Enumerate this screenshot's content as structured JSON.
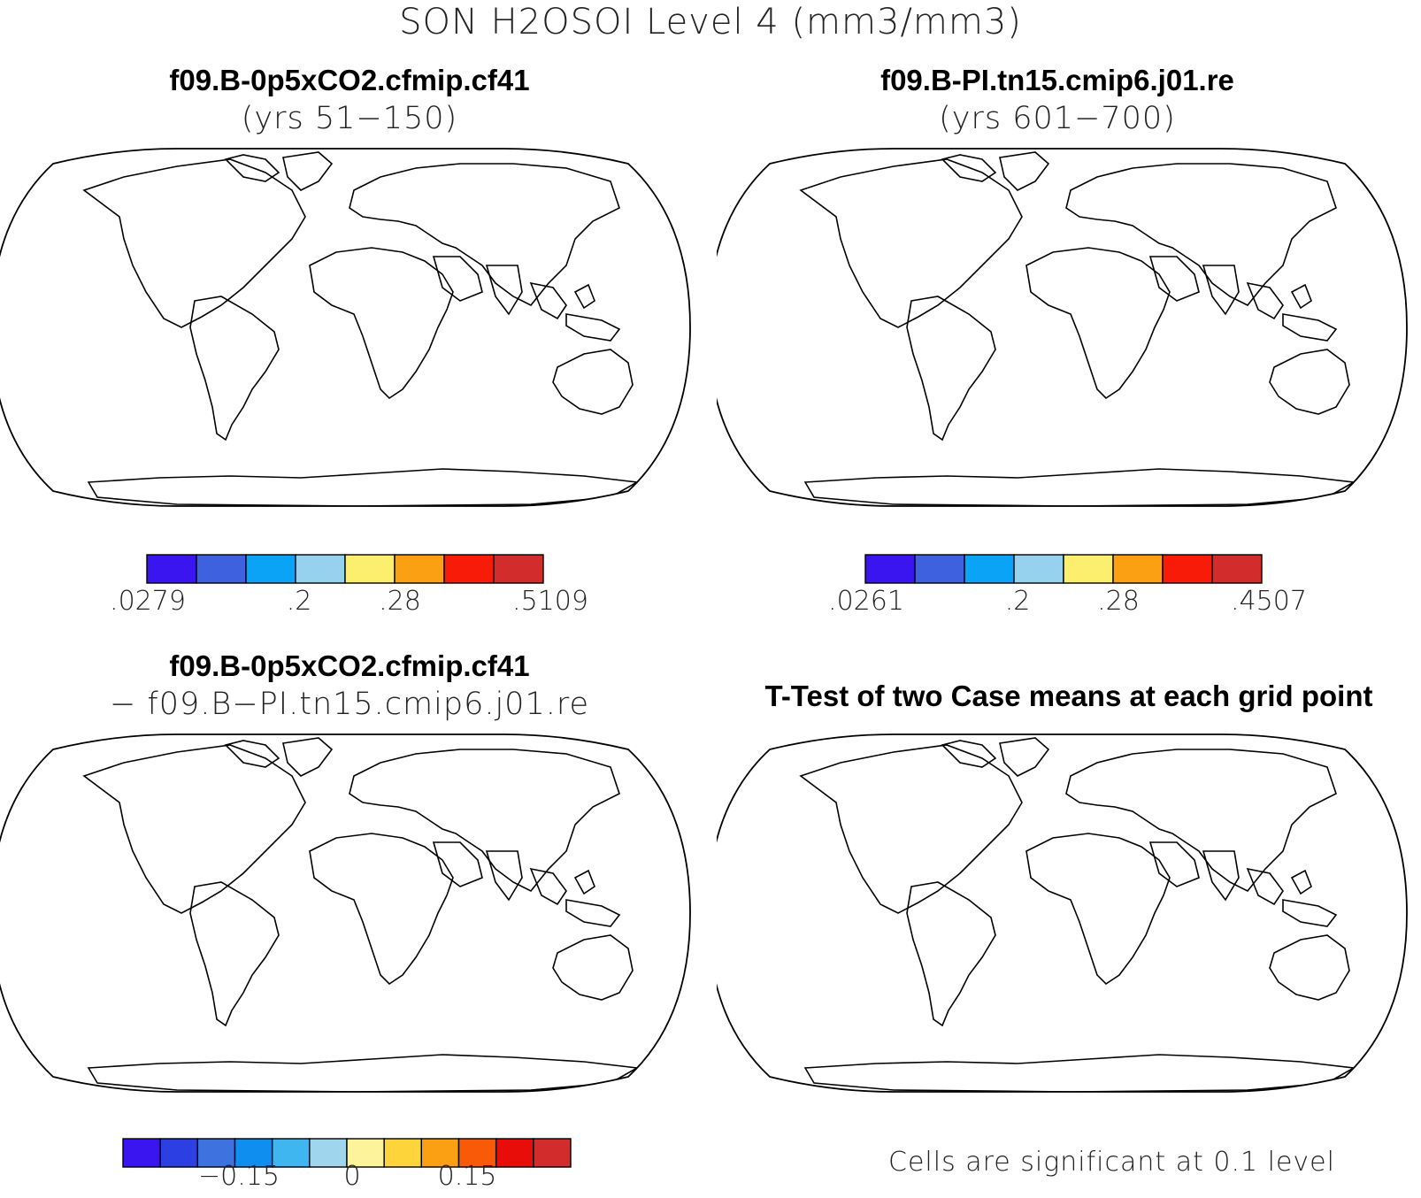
{
  "figure": {
    "title": "SON H2OSOI Level 4 (mm3/mm3)"
  },
  "panels": {
    "top_left": {
      "case": "f09.B-0p5xCO2.cfmip.cf41",
      "subtitle": "(yrs 51−150)",
      "colors": [
        "#3a15f0",
        "#3e62df",
        "#0aa3f5",
        "#96d2ee",
        "#fcef6e",
        "#fba012",
        "#f81c08",
        "#d22c2c"
      ],
      "labels": [
        ".0279",
        ".2",
        ".28",
        ".5109"
      ]
    },
    "top_right": {
      "case": "f09.B-PI.tn15.cmip6.j01.re",
      "subtitle": "(yrs 601−700)",
      "colors": [
        "#3a15f0",
        "#3e62df",
        "#0aa3f5",
        "#96d2ee",
        "#fcef6e",
        "#fba012",
        "#f81c08",
        "#d22c2c"
      ],
      "labels": [
        ".0261",
        ".2",
        ".28",
        ".4507"
      ]
    },
    "bottom_left": {
      "case": "f09.B-0p5xCO2.cfmip.cf41",
      "subtitle": "− f09.B−PI.tn15.cmip6.j01.re",
      "colors": [
        "#3a15f0",
        "#2b3fe3",
        "#3e73df",
        "#0f8ef0",
        "#3fb6f0",
        "#9fd6ee",
        "#fdf39a",
        "#fdd53a",
        "#fba012",
        "#f85a08",
        "#e80d08",
        "#d22c2c"
      ],
      "labels": [
        "−0.15",
        "0",
        "0.15"
      ]
    },
    "bottom_right": {
      "title": "T-Test of two Case means at each grid point",
      "note": "Cells are significant at 0.1 level",
      "sig_color": "#f10808"
    }
  },
  "chart_data": [
    {
      "type": "heatmap",
      "title": "f09.B-0p5xCO2.cfmip.cf41 (yrs 51−15 0)",
      "colorbar_labels": [
        ".0279",
        ".2",
        ".28",
        ".5109"
      ],
      "colorbar_range": [
        0.0279,
        0.5109
      ],
      "colorbar_bins": 8
    },
    {
      "type": "heatmap",
      "title": "f09.B-PI.tn15.cmip6.j01.re (yrs 601−700)",
      "colorbar_labels": [
        ".0261",
        ".2",
        ".28",
        ".4507"
      ],
      "colorbar_range": [
        0.0261,
        0.4507
      ],
      "colorbar_bins": 8
    },
    {
      "type": "heatmap",
      "title": "f09.B-0p5xCO2.cfmip.cf41 − f09.B−PI.tn15.cmip6.j01.re",
      "colorbar_labels": [
        "−0.15",
        "0",
        "0.15"
      ],
      "colorbar_bins": 12
    },
    {
      "type": "heatmap",
      "title": "T-Test of two Case means at each grid point",
      "legend": "Cells are significant at 0.1 level",
      "significance_level": 0.1
    }
  ]
}
